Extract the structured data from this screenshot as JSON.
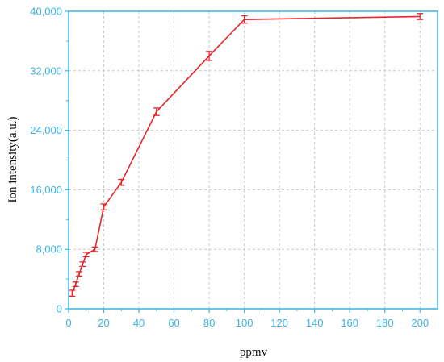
{
  "chart_data": {
    "type": "line",
    "title": "",
    "xlabel": "ppmv",
    "ylabel": "Ion intensity(a.u.)",
    "xlim": [
      0,
      210
    ],
    "ylim": [
      0,
      40000
    ],
    "xticks": [
      0,
      20,
      40,
      60,
      80,
      100,
      120,
      140,
      160,
      180,
      200
    ],
    "yticks": [
      0,
      8000,
      16000,
      24000,
      32000,
      40000
    ],
    "xtick_labels": [
      "0",
      "20",
      "40",
      "60",
      "80",
      "100",
      "120",
      "140",
      "160",
      "180",
      "200"
    ],
    "ytick_labels": [
      "0",
      "8,000",
      "16,000",
      "24,000",
      "32,000",
      "40,000"
    ],
    "grid": true,
    "legend": "none",
    "series": [
      {
        "x": [
          2,
          4,
          6,
          8,
          10,
          15,
          20,
          30,
          50,
          80,
          100,
          200
        ],
        "y": [
          2100,
          3300,
          4700,
          6000,
          7300,
          8000,
          13700,
          17000,
          26500,
          34000,
          38900,
          39300
        ],
        "error": [
          400,
          300,
          300,
          300,
          300,
          300,
          400,
          400,
          500,
          600,
          500,
          400
        ],
        "color": "#e8262a"
      }
    ],
    "colors": {
      "axis": "#3ab4e6",
      "tick_text": "#3ab4e6",
      "grid": "#c8c8c8",
      "line": "#e8262a"
    }
  }
}
